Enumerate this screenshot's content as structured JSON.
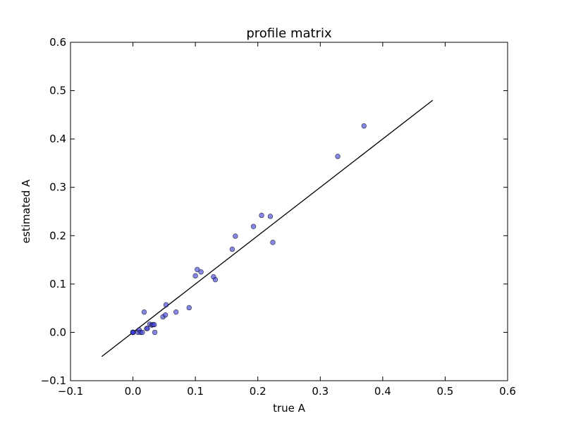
{
  "chart_data": {
    "type": "scatter",
    "title": "profile matrix",
    "xlabel": "true A",
    "ylabel": "estimated A",
    "xlim": [
      -0.1,
      0.6
    ],
    "ylim": [
      -0.1,
      0.6
    ],
    "xticks": [
      "−0.1",
      "0.0",
      "0.1",
      "0.2",
      "0.3",
      "0.4",
      "0.5",
      "0.6"
    ],
    "yticks": [
      "−0.1",
      "0.0",
      "0.1",
      "0.2",
      "0.3",
      "0.4",
      "0.5",
      "0.6"
    ],
    "xtick_values": [
      -0.1,
      0.0,
      0.1,
      0.2,
      0.3,
      0.4,
      0.5,
      0.6
    ],
    "ytick_values": [
      -0.1,
      0.0,
      0.1,
      0.2,
      0.3,
      0.4,
      0.5,
      0.6
    ],
    "grid": false,
    "marker_color": "#3b3bd6",
    "line_color": "#000000",
    "reference_line": {
      "x": [
        -0.05,
        0.48
      ],
      "y": [
        -0.05,
        0.48
      ]
    },
    "points": [
      {
        "x": 0.0,
        "y": 0.0
      },
      {
        "x": 0.0,
        "y": 0.0
      },
      {
        "x": 0.0,
        "y": 0.0
      },
      {
        "x": 0.0,
        "y": 0.0
      },
      {
        "x": 0.0,
        "y": 0.0
      },
      {
        "x": 0.0,
        "y": 0.0
      },
      {
        "x": 0.008,
        "y": 0.0
      },
      {
        "x": 0.01,
        "y": 0.005
      },
      {
        "x": 0.012,
        "y": 0.0
      },
      {
        "x": 0.015,
        "y": 0.0
      },
      {
        "x": 0.018,
        "y": 0.042
      },
      {
        "x": 0.022,
        "y": 0.008
      },
      {
        "x": 0.023,
        "y": 0.008
      },
      {
        "x": 0.027,
        "y": 0.017
      },
      {
        "x": 0.03,
        "y": 0.015
      },
      {
        "x": 0.032,
        "y": 0.016
      },
      {
        "x": 0.034,
        "y": 0.016
      },
      {
        "x": 0.035,
        "y": 0.0
      },
      {
        "x": 0.048,
        "y": 0.032
      },
      {
        "x": 0.052,
        "y": 0.036
      },
      {
        "x": 0.053,
        "y": 0.057
      },
      {
        "x": 0.069,
        "y": 0.042
      },
      {
        "x": 0.09,
        "y": 0.051
      },
      {
        "x": 0.1,
        "y": 0.117
      },
      {
        "x": 0.103,
        "y": 0.13
      },
      {
        "x": 0.109,
        "y": 0.125
      },
      {
        "x": 0.129,
        "y": 0.115
      },
      {
        "x": 0.132,
        "y": 0.109
      },
      {
        "x": 0.159,
        "y": 0.172
      },
      {
        "x": 0.164,
        "y": 0.199
      },
      {
        "x": 0.193,
        "y": 0.219
      },
      {
        "x": 0.206,
        "y": 0.242
      },
      {
        "x": 0.22,
        "y": 0.24
      },
      {
        "x": 0.224,
        "y": 0.186
      },
      {
        "x": 0.328,
        "y": 0.364
      },
      {
        "x": 0.37,
        "y": 0.427
      }
    ]
  }
}
